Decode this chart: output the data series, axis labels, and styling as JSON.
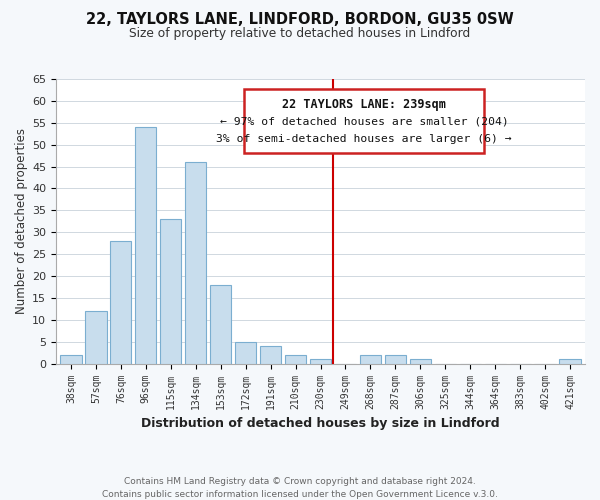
{
  "title": "22, TAYLORS LANE, LINDFORD, BORDON, GU35 0SW",
  "subtitle": "Size of property relative to detached houses in Lindford",
  "xlabel": "Distribution of detached houses by size in Lindford",
  "ylabel": "Number of detached properties",
  "bar_labels": [
    "38sqm",
    "57sqm",
    "76sqm",
    "96sqm",
    "115sqm",
    "134sqm",
    "153sqm",
    "172sqm",
    "191sqm",
    "210sqm",
    "230sqm",
    "249sqm",
    "268sqm",
    "287sqm",
    "306sqm",
    "325sqm",
    "344sqm",
    "364sqm",
    "383sqm",
    "402sqm",
    "421sqm"
  ],
  "bar_values": [
    2,
    12,
    28,
    54,
    33,
    46,
    18,
    5,
    4,
    2,
    1,
    0,
    2,
    2,
    1,
    0,
    0,
    0,
    0,
    0,
    1
  ],
  "bar_color": "#c8dded",
  "bar_edge_color": "#7baed0",
  "vline_color": "#cc0000",
  "ylim": [
    0,
    65
  ],
  "yticks": [
    0,
    5,
    10,
    15,
    20,
    25,
    30,
    35,
    40,
    45,
    50,
    55,
    60,
    65
  ],
  "annotation_title": "22 TAYLORS LANE: 239sqm",
  "annotation_line1": "← 97% of detached houses are smaller (204)",
  "annotation_line2": "3% of semi-detached houses are larger (6) →",
  "footer1": "Contains HM Land Registry data © Crown copyright and database right 2024.",
  "footer2": "Contains public sector information licensed under the Open Government Licence v.3.0.",
  "bg_color": "#f5f8fb",
  "plot_bg_color": "#ffffff",
  "grid_color": "#d0d8e0"
}
